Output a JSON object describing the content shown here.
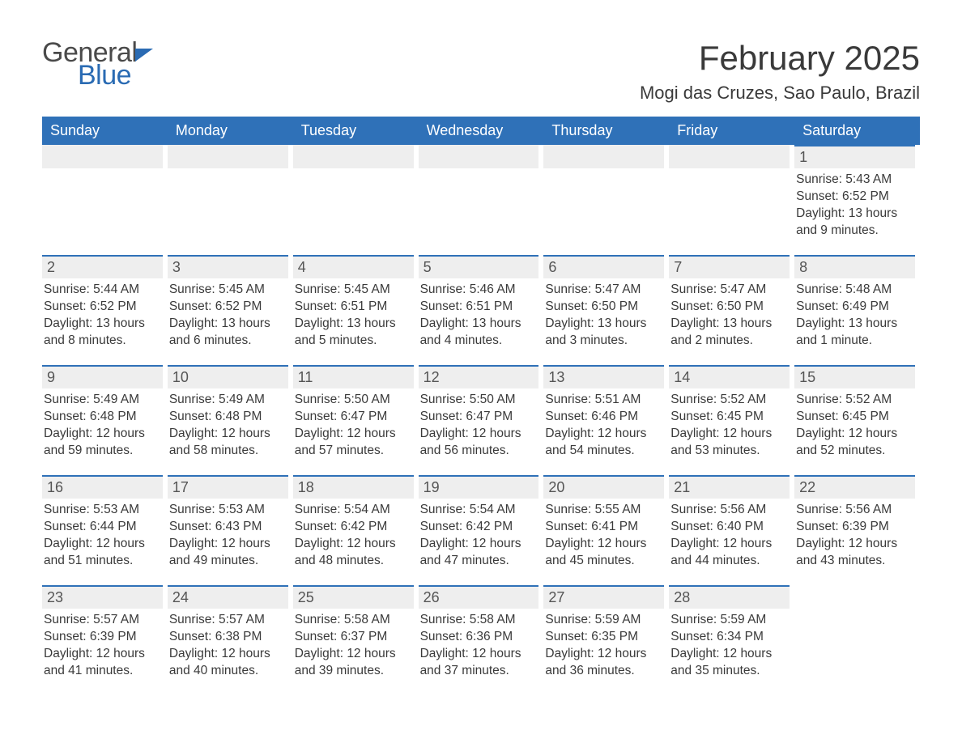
{
  "brand": {
    "part1": "General",
    "part2": "Blue"
  },
  "title": "February 2025",
  "location": "Mogi das Cruzes, Sao Paulo, Brazil",
  "colors": {
    "header_bg": "#2f71b8",
    "header_text": "#ffffff",
    "daynum_bg": "#eeeeee",
    "daynum_border": "#2f71b8",
    "text": "#3a3a3a",
    "brand_gray": "#4a4a4a",
    "brand_blue": "#2a6bb3",
    "page_bg": "#ffffff"
  },
  "weekdays": [
    "Sunday",
    "Monday",
    "Tuesday",
    "Wednesday",
    "Thursday",
    "Friday",
    "Saturday"
  ],
  "weeks": [
    [
      null,
      null,
      null,
      null,
      null,
      null,
      {
        "n": "1",
        "sunrise": "Sunrise: 5:43 AM",
        "sunset": "Sunset: 6:52 PM",
        "daylight": "Daylight: 13 hours and 9 minutes."
      }
    ],
    [
      {
        "n": "2",
        "sunrise": "Sunrise: 5:44 AM",
        "sunset": "Sunset: 6:52 PM",
        "daylight": "Daylight: 13 hours and 8 minutes."
      },
      {
        "n": "3",
        "sunrise": "Sunrise: 5:45 AM",
        "sunset": "Sunset: 6:52 PM",
        "daylight": "Daylight: 13 hours and 6 minutes."
      },
      {
        "n": "4",
        "sunrise": "Sunrise: 5:45 AM",
        "sunset": "Sunset: 6:51 PM",
        "daylight": "Daylight: 13 hours and 5 minutes."
      },
      {
        "n": "5",
        "sunrise": "Sunrise: 5:46 AM",
        "sunset": "Sunset: 6:51 PM",
        "daylight": "Daylight: 13 hours and 4 minutes."
      },
      {
        "n": "6",
        "sunrise": "Sunrise: 5:47 AM",
        "sunset": "Sunset: 6:50 PM",
        "daylight": "Daylight: 13 hours and 3 minutes."
      },
      {
        "n": "7",
        "sunrise": "Sunrise: 5:47 AM",
        "sunset": "Sunset: 6:50 PM",
        "daylight": "Daylight: 13 hours and 2 minutes."
      },
      {
        "n": "8",
        "sunrise": "Sunrise: 5:48 AM",
        "sunset": "Sunset: 6:49 PM",
        "daylight": "Daylight: 13 hours and 1 minute."
      }
    ],
    [
      {
        "n": "9",
        "sunrise": "Sunrise: 5:49 AM",
        "sunset": "Sunset: 6:48 PM",
        "daylight": "Daylight: 12 hours and 59 minutes."
      },
      {
        "n": "10",
        "sunrise": "Sunrise: 5:49 AM",
        "sunset": "Sunset: 6:48 PM",
        "daylight": "Daylight: 12 hours and 58 minutes."
      },
      {
        "n": "11",
        "sunrise": "Sunrise: 5:50 AM",
        "sunset": "Sunset: 6:47 PM",
        "daylight": "Daylight: 12 hours and 57 minutes."
      },
      {
        "n": "12",
        "sunrise": "Sunrise: 5:50 AM",
        "sunset": "Sunset: 6:47 PM",
        "daylight": "Daylight: 12 hours and 56 minutes."
      },
      {
        "n": "13",
        "sunrise": "Sunrise: 5:51 AM",
        "sunset": "Sunset: 6:46 PM",
        "daylight": "Daylight: 12 hours and 54 minutes."
      },
      {
        "n": "14",
        "sunrise": "Sunrise: 5:52 AM",
        "sunset": "Sunset: 6:45 PM",
        "daylight": "Daylight: 12 hours and 53 minutes."
      },
      {
        "n": "15",
        "sunrise": "Sunrise: 5:52 AM",
        "sunset": "Sunset: 6:45 PM",
        "daylight": "Daylight: 12 hours and 52 minutes."
      }
    ],
    [
      {
        "n": "16",
        "sunrise": "Sunrise: 5:53 AM",
        "sunset": "Sunset: 6:44 PM",
        "daylight": "Daylight: 12 hours and 51 minutes."
      },
      {
        "n": "17",
        "sunrise": "Sunrise: 5:53 AM",
        "sunset": "Sunset: 6:43 PM",
        "daylight": "Daylight: 12 hours and 49 minutes."
      },
      {
        "n": "18",
        "sunrise": "Sunrise: 5:54 AM",
        "sunset": "Sunset: 6:42 PM",
        "daylight": "Daylight: 12 hours and 48 minutes."
      },
      {
        "n": "19",
        "sunrise": "Sunrise: 5:54 AM",
        "sunset": "Sunset: 6:42 PM",
        "daylight": "Daylight: 12 hours and 47 minutes."
      },
      {
        "n": "20",
        "sunrise": "Sunrise: 5:55 AM",
        "sunset": "Sunset: 6:41 PM",
        "daylight": "Daylight: 12 hours and 45 minutes."
      },
      {
        "n": "21",
        "sunrise": "Sunrise: 5:56 AM",
        "sunset": "Sunset: 6:40 PM",
        "daylight": "Daylight: 12 hours and 44 minutes."
      },
      {
        "n": "22",
        "sunrise": "Sunrise: 5:56 AM",
        "sunset": "Sunset: 6:39 PM",
        "daylight": "Daylight: 12 hours and 43 minutes."
      }
    ],
    [
      {
        "n": "23",
        "sunrise": "Sunrise: 5:57 AM",
        "sunset": "Sunset: 6:39 PM",
        "daylight": "Daylight: 12 hours and 41 minutes."
      },
      {
        "n": "24",
        "sunrise": "Sunrise: 5:57 AM",
        "sunset": "Sunset: 6:38 PM",
        "daylight": "Daylight: 12 hours and 40 minutes."
      },
      {
        "n": "25",
        "sunrise": "Sunrise: 5:58 AM",
        "sunset": "Sunset: 6:37 PM",
        "daylight": "Daylight: 12 hours and 39 minutes."
      },
      {
        "n": "26",
        "sunrise": "Sunrise: 5:58 AM",
        "sunset": "Sunset: 6:36 PM",
        "daylight": "Daylight: 12 hours and 37 minutes."
      },
      {
        "n": "27",
        "sunrise": "Sunrise: 5:59 AM",
        "sunset": "Sunset: 6:35 PM",
        "daylight": "Daylight: 12 hours and 36 minutes."
      },
      {
        "n": "28",
        "sunrise": "Sunrise: 5:59 AM",
        "sunset": "Sunset: 6:34 PM",
        "daylight": "Daylight: 12 hours and 35 minutes."
      },
      null
    ]
  ]
}
